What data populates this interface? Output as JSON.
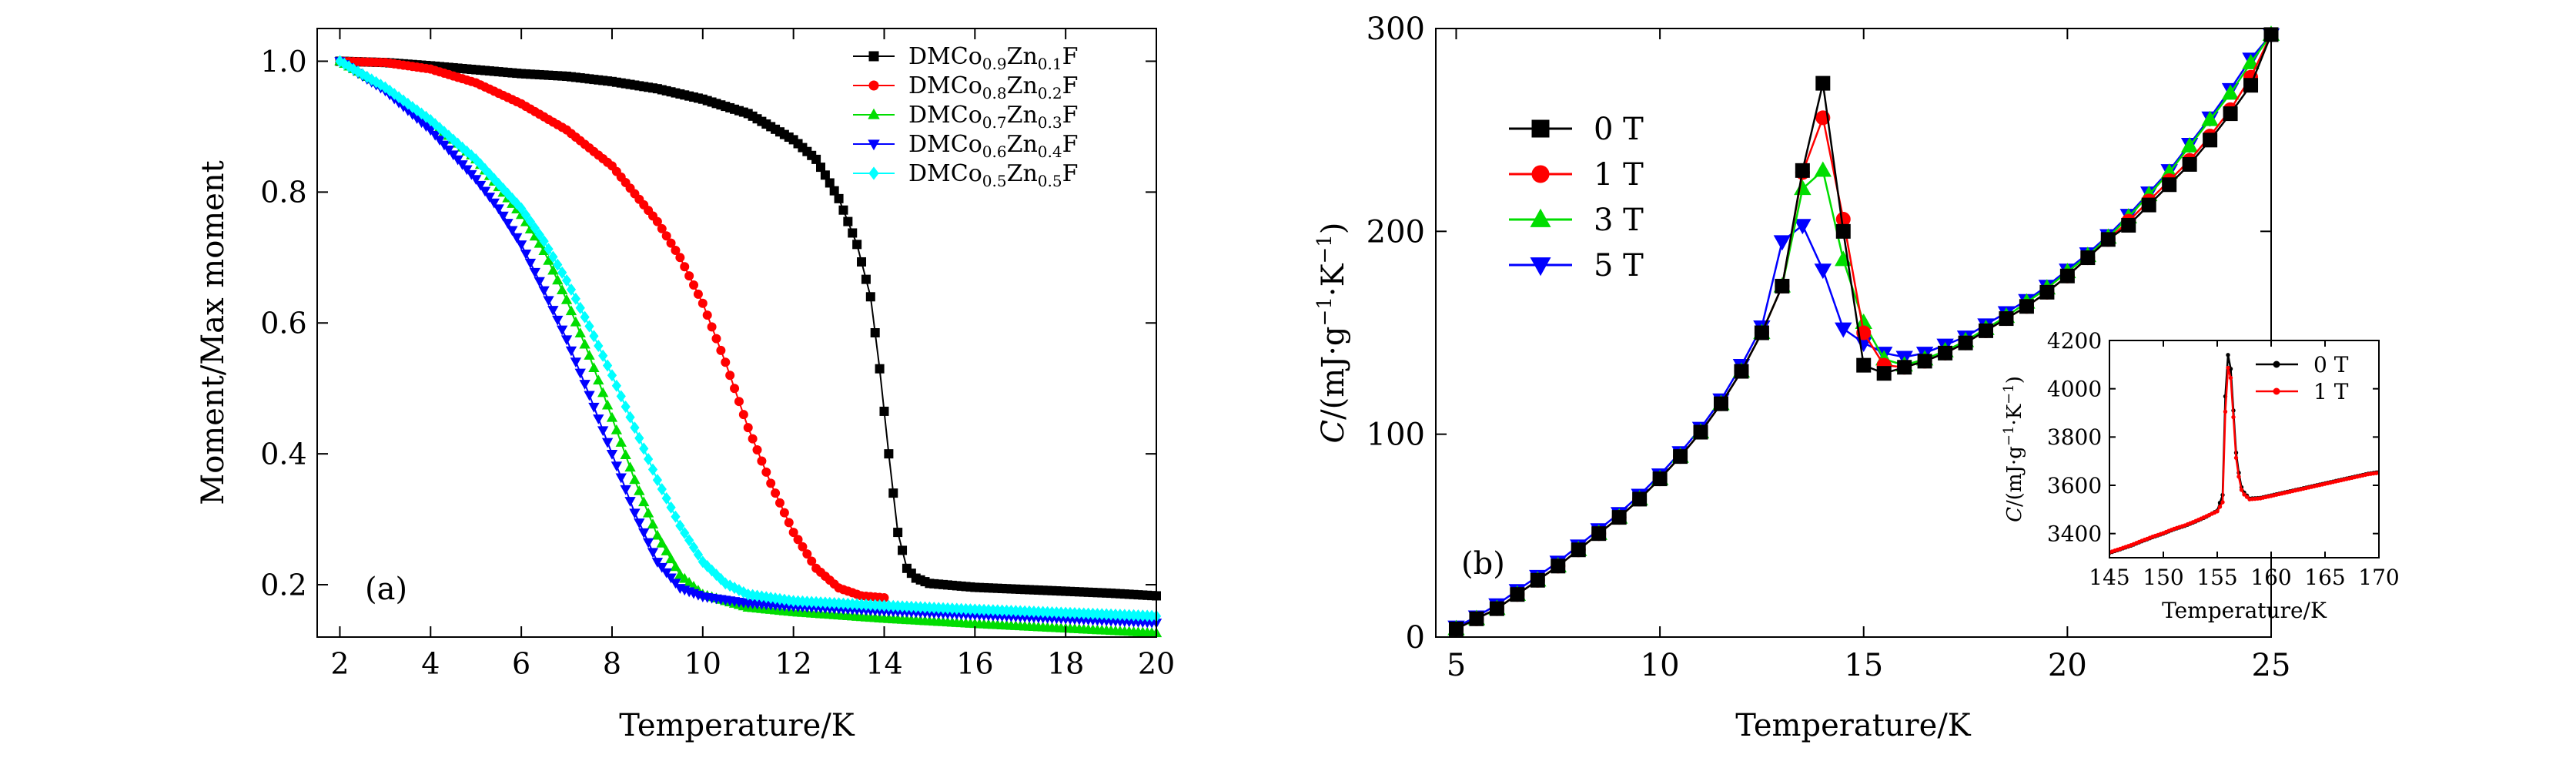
{
  "chart_data": [
    {
      "id": "a",
      "type": "scatter",
      "panel_label": "(a)",
      "xlabel": "Temperature/K",
      "ylabel": "Moment/Max moment",
      "xlim": [
        1.5,
        20
      ],
      "ylim": [
        0.12,
        1.05
      ],
      "xticks": [
        2,
        4,
        6,
        8,
        10,
        12,
        14,
        16,
        18,
        20
      ],
      "xtick_labels": [
        "2",
        "4",
        "6",
        "8",
        "10",
        "12",
        "14",
        "16",
        "18",
        "20"
      ],
      "yticks": [
        0.2,
        0.4,
        0.6,
        0.8,
        1.0
      ],
      "ytick_labels": [
        "0.2",
        "0.4",
        "0.6",
        "0.8",
        "1.0"
      ],
      "legend": {
        "placement": "top-right",
        "entries": [
          {
            "prefix": "DMCo",
            "sub1": "0.9",
            "mid": "Zn",
            "sub2": "0.1",
            "suffix": "F"
          },
          {
            "prefix": "DMCo",
            "sub1": "0.8",
            "mid": "Zn",
            "sub2": "0.2",
            "suffix": "F"
          },
          {
            "prefix": "DMCo",
            "sub1": "0.7",
            "mid": "Zn",
            "sub2": "0.3",
            "suffix": "F"
          },
          {
            "prefix": "DMCo",
            "sub1": "0.6",
            "mid": "Zn",
            "sub2": "0.4",
            "suffix": "F"
          },
          {
            "prefix": "DMCo",
            "sub1": "0.5",
            "mid": "Zn",
            "sub2": "0.5",
            "suffix": "F"
          }
        ]
      },
      "series": [
        {
          "name": "DMCo0.9Zn0.1F",
          "color": "#000000",
          "marker": "square",
          "x": [
            2,
            3,
            4,
            5,
            6,
            7,
            8,
            9,
            10,
            11,
            12,
            12.5,
            13,
            13.4,
            13.7,
            13.9,
            14.1,
            14.3,
            14.5,
            14.7,
            15,
            16,
            17,
            18,
            19,
            20
          ],
          "y": [
            1.0,
            0.998,
            0.993,
            0.987,
            0.981,
            0.977,
            0.969,
            0.958,
            0.942,
            0.92,
            0.88,
            0.85,
            0.79,
            0.72,
            0.64,
            0.53,
            0.4,
            0.28,
            0.225,
            0.21,
            0.202,
            0.196,
            0.193,
            0.19,
            0.187,
            0.183
          ]
        },
        {
          "name": "DMCo0.8Zn0.2F",
          "color": "#ff0000",
          "marker": "circle",
          "x": [
            2,
            3,
            4,
            5,
            6,
            7,
            8,
            9,
            9.5,
            10,
            10.5,
            11,
            11.5,
            12,
            12.5,
            13,
            13.5,
            14
          ],
          "y": [
            1.0,
            0.998,
            0.988,
            0.967,
            0.935,
            0.895,
            0.84,
            0.755,
            0.7,
            0.63,
            0.54,
            0.44,
            0.355,
            0.28,
            0.225,
            0.195,
            0.183,
            0.18
          ]
        },
        {
          "name": "DMCo0.7Zn0.3F",
          "color": "#00dd00",
          "marker": "triangle-up",
          "x": [
            2,
            3,
            4,
            5,
            6,
            6.5,
            7,
            7.5,
            8,
            8.5,
            9,
            9.5,
            10,
            11,
            12,
            14,
            16,
            18,
            20
          ],
          "y": [
            1.0,
            0.96,
            0.91,
            0.85,
            0.765,
            0.71,
            0.635,
            0.55,
            0.455,
            0.36,
            0.275,
            0.215,
            0.185,
            0.165,
            0.158,
            0.148,
            0.14,
            0.133,
            0.126
          ]
        },
        {
          "name": "DMCo0.6Zn0.4F",
          "color": "#0000ff",
          "marker": "triangle-down",
          "x": [
            2,
            3,
            4,
            5,
            5.5,
            6,
            6.5,
            7,
            7.5,
            8,
            8.5,
            9,
            9.5,
            10,
            11,
            12,
            14,
            16,
            18,
            20
          ],
          "y": [
            1.0,
            0.955,
            0.895,
            0.82,
            0.775,
            0.72,
            0.65,
            0.575,
            0.49,
            0.4,
            0.31,
            0.235,
            0.195,
            0.182,
            0.172,
            0.167,
            0.16,
            0.154,
            0.148,
            0.142
          ]
        },
        {
          "name": "DMCo0.5Zn0.5F",
          "color": "#00ffff",
          "marker": "diamond",
          "x": [
            2,
            3,
            4,
            5,
            6,
            6.5,
            7,
            7.5,
            8,
            8.5,
            9,
            9.5,
            10,
            10.5,
            11,
            12,
            14,
            16,
            18,
            20
          ],
          "y": [
            1.0,
            0.96,
            0.91,
            0.85,
            0.775,
            0.725,
            0.665,
            0.595,
            0.52,
            0.44,
            0.36,
            0.29,
            0.235,
            0.202,
            0.185,
            0.175,
            0.168,
            0.162,
            0.157,
            0.152
          ]
        }
      ]
    },
    {
      "id": "b",
      "type": "line",
      "panel_label": "(b)",
      "xlabel": "Temperature/K",
      "ylabel_main": "C",
      "ylabel_rest": "/(mJ·g",
      "ylabel_exp1": "−1",
      "ylabel_mid": "·K",
      "ylabel_exp2": "−1",
      "ylabel_end": ")",
      "xlim": [
        4.5,
        25
      ],
      "ylim": [
        0,
        300
      ],
      "xticks": [
        5,
        10,
        15,
        20,
        25
      ],
      "xtick_labels": [
        "5",
        "10",
        "15",
        "20",
        "25"
      ],
      "yticks": [
        0,
        100,
        200,
        300
      ],
      "ytick_labels": [
        "0",
        "100",
        "200",
        "300"
      ],
      "legend": {
        "placement": "top-left",
        "entries": [
          "0 T",
          "1 T",
          "3 T",
          "5 T"
        ]
      },
      "series": [
        {
          "name": "0 T",
          "color": "#000000",
          "marker": "square",
          "x": [
            5,
            5.5,
            6,
            6.5,
            7,
            7.5,
            8,
            8.5,
            9,
            9.5,
            10,
            10.5,
            11,
            11.5,
            12,
            12.5,
            13,
            13.5,
            14,
            14.5,
            15,
            15.5,
            16,
            16.5,
            17,
            17.5,
            18,
            18.5,
            19,
            19.5,
            20,
            20.5,
            21,
            21.5,
            22,
            22.5,
            23,
            23.5,
            24,
            24.5,
            25
          ],
          "y": [
            4,
            9,
            14,
            21,
            28,
            35,
            43,
            51,
            59,
            68,
            78,
            89,
            101,
            115,
            131,
            150,
            173,
            230,
            273,
            200,
            134,
            130,
            133,
            136,
            140,
            145,
            151,
            157,
            163,
            170,
            178,
            187,
            196,
            203,
            213,
            223,
            233,
            245,
            258,
            272,
            297
          ]
        },
        {
          "name": "1 T",
          "color": "#ff0000",
          "marker": "circle",
          "x": [
            5,
            5.5,
            6,
            6.5,
            7,
            7.5,
            8,
            8.5,
            9,
            9.5,
            10,
            10.5,
            11,
            11.5,
            12,
            12.5,
            13,
            13.5,
            14,
            14.5,
            15,
            15.5,
            16,
            16.5,
            17,
            17.5,
            18,
            18.5,
            19,
            19.5,
            20,
            20.5,
            21,
            21.5,
            22,
            22.5,
            23,
            23.5,
            24,
            24.5,
            25
          ],
          "y": [
            4,
            9,
            14,
            21,
            28,
            35,
            43,
            51,
            59,
            68,
            78,
            89,
            101,
            115,
            131,
            150,
            173,
            229,
            256,
            206,
            150,
            134,
            133,
            136,
            140,
            145,
            151,
            157,
            163,
            170,
            178,
            187,
            196,
            205,
            215,
            225,
            235,
            247,
            260,
            276,
            297
          ]
        },
        {
          "name": "3 T",
          "color": "#00dd00",
          "marker": "triangle-up",
          "x": [
            5,
            5.5,
            6,
            6.5,
            7,
            7.5,
            8,
            8.5,
            9,
            9.5,
            10,
            10.5,
            11,
            11.5,
            12,
            12.5,
            13,
            13.5,
            14,
            14.5,
            15,
            15.5,
            16,
            16.5,
            17,
            17.5,
            18,
            18.5,
            19,
            19.5,
            20,
            20.5,
            21,
            21.5,
            22,
            22.5,
            23,
            23.5,
            24,
            24.5,
            25
          ],
          "y": [
            4,
            9,
            14,
            21,
            28,
            35,
            43,
            51,
            59,
            68,
            78,
            89,
            101,
            115,
            131,
            150,
            173,
            221,
            230,
            186,
            155,
            137,
            134,
            137,
            141,
            146,
            152,
            158,
            165,
            172,
            180,
            188,
            197,
            207,
            218,
            229,
            242,
            255,
            268,
            283,
            297
          ]
        },
        {
          "name": "5 T",
          "color": "#0000ff",
          "marker": "triangle-down",
          "x": [
            5,
            5.5,
            6,
            6.5,
            7,
            7.5,
            8,
            8.5,
            9,
            9.5,
            10,
            10.5,
            11,
            11.5,
            12,
            12.5,
            13,
            13.5,
            14,
            14.5,
            15,
            15.5,
            16,
            16.5,
            17,
            17.5,
            18,
            18.5,
            19,
            19.5,
            20,
            20.5,
            21,
            21.5,
            22,
            22.5,
            23,
            23.5,
            24,
            24.5,
            25
          ],
          "y": [
            5,
            10,
            16,
            23,
            30,
            37,
            45,
            53,
            61,
            70,
            80,
            91,
            103,
            117,
            134,
            153,
            195,
            203,
            181,
            152,
            145,
            140,
            138,
            140,
            144,
            148,
            154,
            160,
            166,
            173,
            181,
            189,
            198,
            208,
            219,
            230,
            243,
            256,
            270,
            285,
            297
          ]
        }
      ]
    },
    {
      "id": "b-inset",
      "type": "line",
      "xlabel": "Temperature/K",
      "ylabel_main": "C",
      "ylabel_rest": "/(mJ·g",
      "ylabel_exp1": "−1",
      "ylabel_mid": "·K",
      "ylabel_exp2": "−1",
      "ylabel_end": ")",
      "xlim": [
        145,
        170
      ],
      "ylim": [
        3300,
        4200
      ],
      "xticks": [
        145,
        150,
        155,
        160,
        165,
        170
      ],
      "xtick_labels": [
        "145",
        "150",
        "155",
        "160",
        "165",
        "170"
      ],
      "yticks": [
        3400,
        3600,
        3800,
        4000,
        4200
      ],
      "ytick_labels": [
        "3400",
        "3600",
        "3800",
        "4000",
        "4200"
      ],
      "legend": {
        "placement": "top-right",
        "entries": [
          "0 T",
          "1 T"
        ]
      },
      "series": [
        {
          "name": "0 T",
          "color": "#000000",
          "marker": "dot",
          "x": [
            145,
            146,
            147,
            148,
            149,
            150,
            151,
            152,
            153,
            154,
            155,
            155.5,
            155.8,
            156.1,
            156.4,
            156.8,
            157.3,
            158,
            159,
            160,
            161,
            162,
            163,
            164,
            165,
            166,
            167,
            168,
            169,
            170
          ],
          "y": [
            3320,
            3335,
            3350,
            3368,
            3385,
            3400,
            3418,
            3432,
            3450,
            3470,
            3495,
            3560,
            4050,
            4185,
            3980,
            3700,
            3580,
            3545,
            3548,
            3558,
            3568,
            3578,
            3588,
            3598,
            3608,
            3618,
            3628,
            3638,
            3648,
            3655
          ]
        },
        {
          "name": "1 T",
          "color": "#ff0000",
          "marker": "dot",
          "x": [
            145,
            146,
            147,
            148,
            149,
            150,
            151,
            152,
            153,
            154,
            155,
            155.5,
            155.8,
            156.1,
            156.4,
            156.8,
            157.3,
            158,
            159,
            160,
            161,
            162,
            163,
            164,
            165,
            166,
            167,
            168,
            169,
            170
          ],
          "y": [
            3322,
            3337,
            3352,
            3370,
            3387,
            3402,
            3420,
            3434,
            3452,
            3472,
            3492,
            3530,
            3980,
            4140,
            3950,
            3680,
            3570,
            3542,
            3546,
            3556,
            3566,
            3576,
            3586,
            3596,
            3606,
            3616,
            3626,
            3636,
            3646,
            3652
          ]
        }
      ]
    }
  ]
}
